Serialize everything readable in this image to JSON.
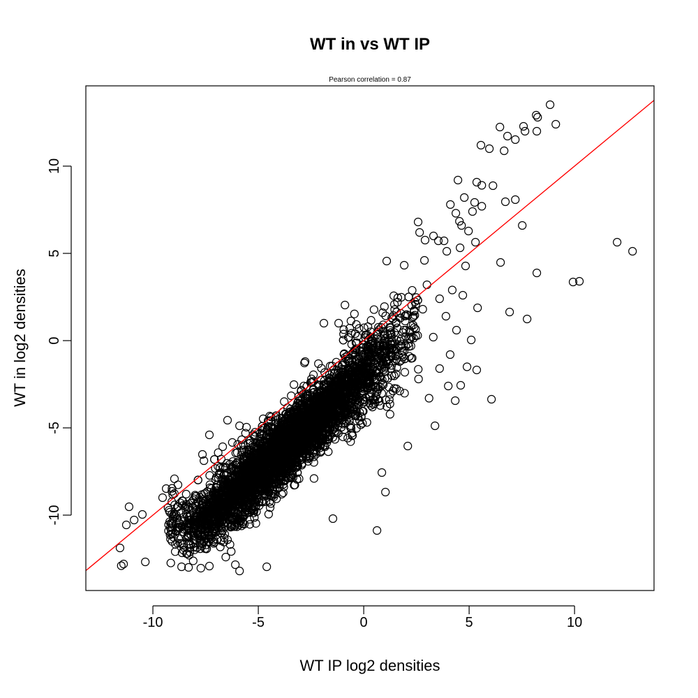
{
  "chart_data": {
    "type": "scatter",
    "title": "WT in vs WT IP",
    "subtitle": "Pearson correlation =  0.87",
    "xlabel": "WT IP log2 densities",
    "ylabel": "WT in log2 densities",
    "xlim": [
      -13.18,
      13.77
    ],
    "ylim": [
      -14.32,
      14.6
    ],
    "xticks": [
      -10,
      -5,
      0,
      5,
      10
    ],
    "yticks": [
      -10,
      -5,
      0,
      5,
      10
    ],
    "xtick_labels": [
      "-10",
      "-5",
      "0",
      "5",
      "10"
    ],
    "ytick_labels": [
      "-10",
      "-5",
      "0",
      "5",
      "10"
    ],
    "grid": false,
    "marker": "open-circle",
    "point_color": "#000000",
    "fit_line": {
      "intercept": 0.0,
      "slope": 1.0,
      "color": "#ff0000"
    },
    "points": [
      [
        8.84,
        13.52
      ],
      [
        8.18,
        12.92
      ],
      [
        8.25,
        12.8
      ],
      [
        9.11,
        12.4
      ],
      [
        7.58,
        12.28
      ],
      [
        6.46,
        12.24
      ],
      [
        6.82,
        11.72
      ],
      [
        7.65,
        12.0
      ],
      [
        8.21,
        12.0
      ],
      [
        7.19,
        11.52
      ],
      [
        5.56,
        11.2
      ],
      [
        5.96,
        11.0
      ],
      [
        6.66,
        10.88
      ],
      [
        4.47,
        9.2
      ],
      [
        5.36,
        9.08
      ],
      [
        5.6,
        8.9
      ],
      [
        6.13,
        8.88
      ],
      [
        4.77,
        8.2
      ],
      [
        5.26,
        7.92
      ],
      [
        4.11,
        7.8
      ],
      [
        5.16,
        7.4
      ],
      [
        5.6,
        7.7
      ],
      [
        4.37,
        7.3
      ],
      [
        6.72,
        7.96
      ],
      [
        7.19,
        8.08
      ],
      [
        4.54,
        6.84
      ],
      [
        4.64,
        6.6
      ],
      [
        2.58,
        6.8
      ],
      [
        2.65,
        6.2
      ],
      [
        4.97,
        6.28
      ],
      [
        7.52,
        6.6
      ],
      [
        3.31,
        6.0
      ],
      [
        3.54,
        5.72
      ],
      [
        3.81,
        5.72
      ],
      [
        2.91,
        5.76
      ],
      [
        5.3,
        5.64
      ],
      [
        4.57,
        5.32
      ],
      [
        3.94,
        5.12
      ],
      [
        1.09,
        4.56
      ],
      [
        2.88,
        4.6
      ],
      [
        1.92,
        4.32
      ],
      [
        6.49,
        4.48
      ],
      [
        4.83,
        4.28
      ],
      [
        12.02,
        5.64
      ],
      [
        12.75,
        5.12
      ],
      [
        10.23,
        3.4
      ],
      [
        9.93,
        3.36
      ],
      [
        8.21,
        3.88
      ],
      [
        6.92,
        1.64
      ],
      [
        7.75,
        1.24
      ],
      [
        6.06,
        -3.36
      ],
      [
        5.1,
        0.04
      ],
      [
        5.36,
        -1.68
      ],
      [
        5.4,
        1.88
      ],
      [
        -0.89,
        2.04
      ],
      [
        -1.19,
        1.0
      ],
      [
        -1.89,
        1.0
      ],
      [
        0.63,
        -10.88
      ],
      [
        -1.46,
        -10.2
      ],
      [
        1.03,
        -8.68
      ],
      [
        -11.13,
        -9.52
      ],
      [
        -11.26,
        -10.56
      ],
      [
        -10.89,
        -10.28
      ],
      [
        -11.56,
        -11.88
      ],
      [
        -11.39,
        -12.8
      ],
      [
        -11.5,
        -12.9
      ],
      [
        -10.36,
        -12.68
      ],
      [
        -10.5,
        -9.96
      ],
      [
        -9.37,
        -8.48
      ],
      [
        -9.54,
        -9.0
      ],
      [
        -7.65,
        -6.52
      ],
      [
        -7.58,
        -6.88
      ],
      [
        -7.32,
        -5.4
      ],
      [
        -6.46,
        -4.56
      ],
      [
        -6.69,
        -6.08
      ],
      [
        -5.89,
        -4.88
      ],
      [
        -5.56,
        -4.96
      ],
      [
        -4.77,
        -4.48
      ],
      [
        -5.79,
        -5.68
      ],
      [
        -6.82,
        -7.28
      ],
      [
        -6.09,
        -12.84
      ],
      [
        -5.89,
        -13.2
      ],
      [
        -4.6,
        -12.96
      ],
      [
        -8.64,
        -12.96
      ],
      [
        -7.32,
        -12.92
      ],
      [
        -2.81,
        -1.28
      ],
      [
        -2.78,
        -1.2
      ],
      [
        -2.15,
        -1.32
      ],
      [
        -3.31,
        -2.52
      ],
      [
        -2.48,
        -2.4
      ],
      [
        -1.59,
        -2.32
      ],
      [
        -1.32,
        -3.28
      ],
      [
        -3.44,
        -3.16
      ],
      [
        3.38,
        -4.88
      ],
      [
        4.34,
        -3.44
      ],
      [
        4.01,
        -2.6
      ],
      [
        4.6,
        -2.56
      ],
      [
        2.09,
        -6.04
      ],
      [
        0.86,
        -7.56
      ],
      [
        3.0,
        3.2
      ],
      [
        3.6,
        2.4
      ],
      [
        4.2,
        2.9
      ],
      [
        3.9,
        1.4
      ],
      [
        4.4,
        0.6
      ],
      [
        2.8,
        1.8
      ],
      [
        3.3,
        0.2
      ],
      [
        4.1,
        -0.8
      ],
      [
        3.6,
        -1.6
      ],
      [
        2.6,
        -2.2
      ],
      [
        4.9,
        -1.5
      ],
      [
        4.7,
        2.6
      ],
      [
        3.1,
        -3.3
      ],
      [
        2.3,
        -1.0
      ],
      [
        1.6,
        2.2
      ],
      [
        0.9,
        1.6
      ],
      [
        -0.4,
        0.4
      ],
      [
        0.2,
        0.8
      ],
      [
        1.3,
        -0.2
      ],
      [
        2.0,
        0.6
      ]
    ],
    "generated_cloud": {
      "n": 4500,
      "seed": 12345,
      "x_mean": -3.6,
      "x_sd": 2.6,
      "x_range": [
        -9.3,
        2.6
      ],
      "trend_intercept": -2.0,
      "trend_slope": 1.1,
      "floor": -10.6,
      "y_sd": 0.95,
      "y_min": -13.2
    }
  }
}
